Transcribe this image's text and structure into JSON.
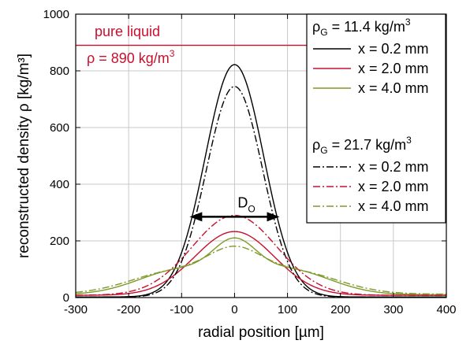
{
  "chart_data": {
    "type": "line",
    "xlabel": "radial position [µm]",
    "ylabel": "reconstructed density ρ [kg/m³]",
    "xlim": [
      -300,
      400
    ],
    "ylim": [
      0,
      1000
    ],
    "xticks": [
      -300,
      -200,
      -100,
      0,
      100,
      200,
      300,
      400
    ],
    "yticks": [
      0,
      200,
      400,
      600,
      800,
      1000
    ],
    "grid": true,
    "legend_position": "top-right",
    "legend_groups": [
      {
        "header": "ρG = 11.4 kg/m³",
        "header_main": "ρ",
        "header_sub": "G",
        "header_rest": " = 11.4 kg/m",
        "header_sup": "3"
      },
      {
        "header": "ρG = 21.7 kg/m³",
        "header_main": "ρ",
        "header_sub": "G",
        "header_rest": " = 21.7 kg/m",
        "header_sup": "3"
      }
    ],
    "reference_line": {
      "label": "pure liquid",
      "value_label": "ρ = 890 kg/m³",
      "value_main": "ρ = 890 kg/m",
      "value_sup": "3",
      "y": 890,
      "color": "#c8102e"
    },
    "annotation": {
      "label": "D",
      "sub": "O",
      "x_from": -85,
      "x_to": 85,
      "y": 285
    },
    "series": [
      {
        "name": "x = 0.2 mm",
        "group": 0,
        "color": "#000000",
        "dash": "solid",
        "peak": 820,
        "sigma": 55,
        "base": 2,
        "bumps": []
      },
      {
        "name": "x = 2.0 mm",
        "group": 0,
        "color": "#c8102e",
        "dash": "solid",
        "peak": 225,
        "sigma": 75,
        "base": 8,
        "bumps": []
      },
      {
        "name": "x = 4.0 mm",
        "group": 0,
        "color": "#7f9a2a",
        "dash": "solid",
        "peak": 120,
        "sigma": 40,
        "base": 10,
        "bumps": [
          {
            "x": -100,
            "h": 88,
            "s": 80
          },
          {
            "x": 100,
            "h": 88,
            "s": 80
          }
        ]
      },
      {
        "name": "x = 0.2 mm",
        "group": 1,
        "color": "#000000",
        "dash": "dashdot",
        "peak": 743,
        "sigma": 53,
        "base": 2,
        "bumps": []
      },
      {
        "name": "x = 2.0 mm",
        "group": 1,
        "color": "#c8102e",
        "dash": "dashdot",
        "peak": 282,
        "sigma": 80,
        "base": 8,
        "bumps": []
      },
      {
        "name": "x = 4.0 mm",
        "group": 1,
        "color": "#7f9a2a",
        "dash": "dashdot",
        "peak": 100,
        "sigma": 50,
        "base": 12,
        "bumps": [
          {
            "x": -110,
            "h": 80,
            "s": 85
          },
          {
            "x": 110,
            "h": 80,
            "s": 85
          }
        ]
      }
    ]
  }
}
